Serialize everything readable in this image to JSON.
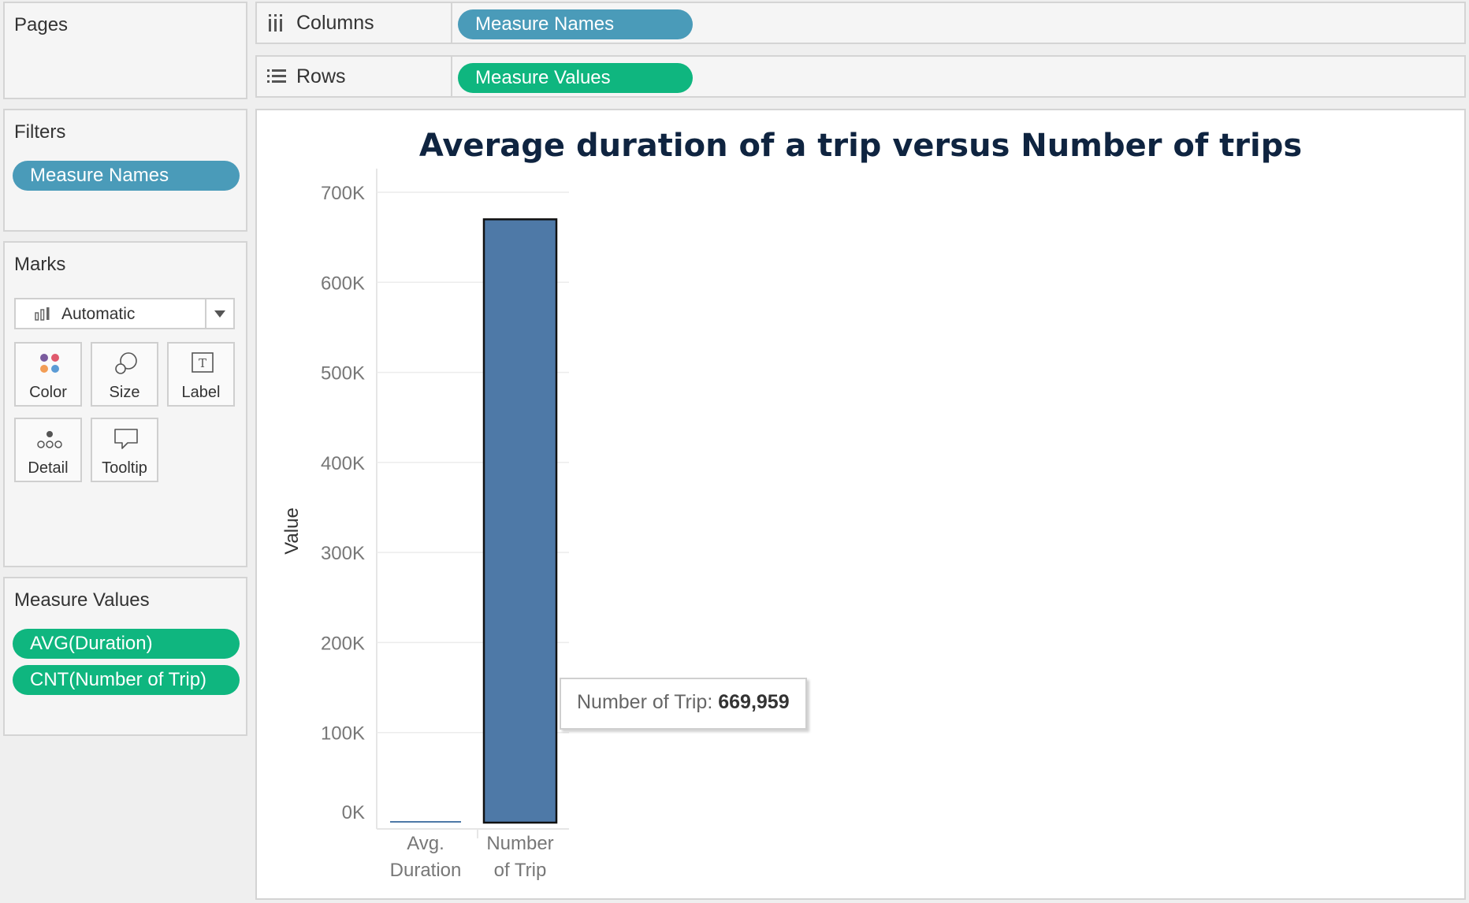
{
  "pages": {
    "title": "Pages"
  },
  "filters": {
    "title": "Filters",
    "pills": [
      "Measure Names"
    ]
  },
  "marks": {
    "title": "Marks",
    "mark_type": "Automatic",
    "buttons": {
      "color": "Color",
      "size": "Size",
      "label": "Label",
      "detail": "Detail",
      "tooltip": "Tooltip"
    }
  },
  "measure_values": {
    "title": "Measure Values",
    "pills": [
      "AVG(Duration)",
      "CNT(Number of Trip)"
    ]
  },
  "shelves": {
    "columns": {
      "label": "Columns",
      "pill": "Measure Names"
    },
    "rows": {
      "label": "Rows",
      "pill": "Measure Values"
    }
  },
  "colors": {
    "dimension_pill": "#4a9bb9",
    "measure_pill": "#0fb67f",
    "bar": "#4e79a7",
    "title": "#0f2440"
  },
  "tooltip": {
    "label": "Number of Trip:",
    "value": "669,959"
  },
  "chart_data": {
    "type": "bar",
    "title": "Average duration of a trip versus Number of trips",
    "xlabel": "",
    "ylabel": "Value",
    "categories": [
      [
        "Avg.",
        "Duration"
      ],
      [
        "Number",
        "of Trip"
      ]
    ],
    "values": [
      1200,
      669959
    ],
    "ylim": [
      0,
      700000
    ],
    "yticks": [
      0,
      100000,
      200000,
      300000,
      400000,
      500000,
      600000,
      700000
    ],
    "ytick_labels": [
      "0K",
      "100K",
      "200K",
      "300K",
      "400K",
      "500K",
      "600K",
      "700K"
    ],
    "grid": true
  }
}
